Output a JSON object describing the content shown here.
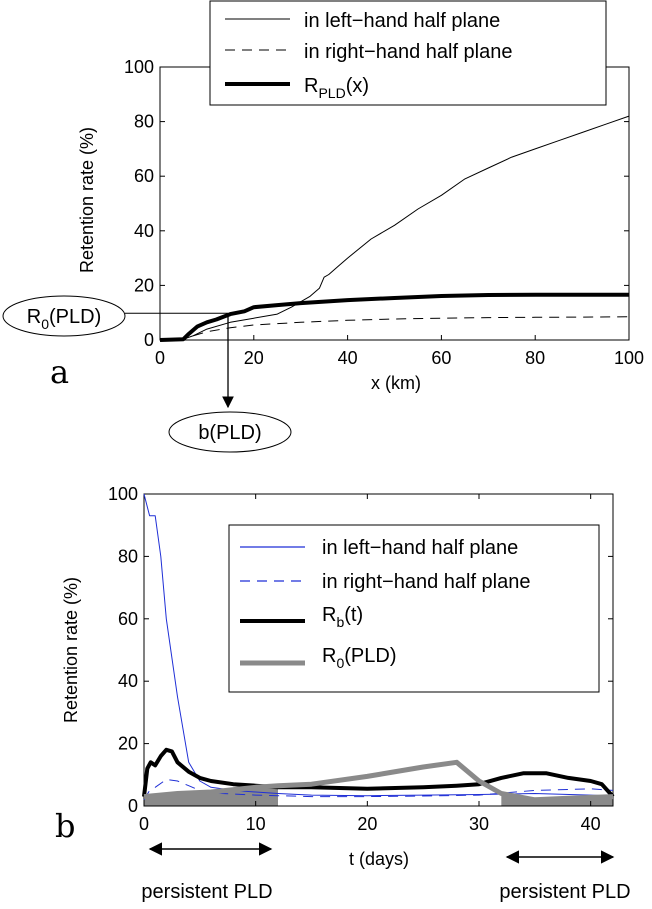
{
  "chart_data": [
    {
      "panel": "a",
      "type": "line",
      "xlabel": "x (km)",
      "ylabel": "Retention rate (%)",
      "xlim": [
        0,
        100
      ],
      "ylim": [
        0,
        100
      ],
      "xticks": [
        "0",
        "20",
        "40",
        "60",
        "80",
        "100"
      ],
      "yticks": [
        "0",
        "20",
        "40",
        "60",
        "80",
        "100"
      ],
      "grid": false,
      "legend_position": "top-right",
      "series": [
        {
          "name": "in left−hand half plane",
          "style": "thin-solid",
          "color": "#000000",
          "x": [
            0,
            5,
            7,
            10,
            15,
            20,
            25,
            28,
            32,
            34,
            35,
            36,
            38,
            40,
            45,
            50,
            55,
            60,
            65,
            70,
            75,
            80,
            85,
            90,
            95,
            100
          ],
          "y": [
            0,
            0.3,
            1.5,
            4,
            6.5,
            8,
            9.5,
            12,
            16,
            19,
            23,
            24,
            27,
            30,
            37,
            42,
            48,
            53,
            59,
            63,
            67,
            70,
            73,
            76,
            79,
            82
          ]
        },
        {
          "name": "in right−hand half plane",
          "style": "dashed",
          "color": "#000000",
          "x": [
            0,
            5,
            7,
            10,
            15,
            20,
            30,
            40,
            50,
            60,
            70,
            80,
            90,
            100
          ],
          "y": [
            0,
            0.3,
            1.5,
            3,
            4.5,
            5.5,
            6.5,
            7.2,
            7.7,
            8,
            8.2,
            8.3,
            8.4,
            8.5
          ]
        },
        {
          "name_parts": [
            "R",
            "PLD",
            "(x)"
          ],
          "style": "thick-solid",
          "color": "#000000",
          "x": [
            0,
            5,
            6,
            8,
            10,
            12,
            15,
            18,
            20,
            25,
            30,
            40,
            50,
            60,
            70,
            80,
            90,
            100
          ],
          "y": [
            0,
            0.3,
            2,
            5,
            6.5,
            7.5,
            9.5,
            10.5,
            12,
            12.8,
            13.5,
            14.6,
            15.4,
            16.1,
            16.5,
            16.6,
            16.6,
            16.6
          ]
        }
      ],
      "annotations": {
        "r0_label": [
          "R",
          "0",
          "(PLD)"
        ],
        "b_label": "b(PLD)",
        "r0_value": 9.8,
        "b_value": 14.5
      }
    },
    {
      "panel": "b",
      "type": "line",
      "xlabel": "t (days)",
      "ylabel": "Retention rate (%)",
      "xlim": [
        0,
        42
      ],
      "ylim": [
        0,
        100
      ],
      "xticks": [
        "0",
        "10",
        "20",
        "30",
        "40"
      ],
      "yticks": [
        "0",
        "20",
        "40",
        "60",
        "80",
        "100"
      ],
      "grid": false,
      "legend_position": "right",
      "series": [
        {
          "name": "in left−hand half plane",
          "style": "thin-solid",
          "color": "#1f2fd6",
          "x": [
            0,
            0.5,
            1,
            1.5,
            2,
            3,
            4,
            5,
            6,
            8,
            10,
            12,
            15,
            20,
            25,
            30,
            35,
            40,
            42
          ],
          "y": [
            100,
            93,
            93,
            80,
            60,
            35,
            14,
            8,
            6,
            5,
            4.5,
            4,
            3.5,
            3.3,
            3.5,
            3.7,
            4,
            3.5,
            3.2
          ]
        },
        {
          "name": "in right−hand half plane",
          "style": "dashed",
          "color": "#1f2fd6",
          "x": [
            0,
            0.5,
            1,
            2,
            3,
            4,
            5,
            7,
            10,
            15,
            20,
            25,
            30,
            35,
            40,
            42
          ],
          "y": [
            2,
            5,
            6,
            8.5,
            8,
            6.5,
            5,
            4,
            3.5,
            3,
            3,
            3.2,
            3.5,
            5,
            5.5,
            5
          ]
        },
        {
          "name_parts": [
            "R",
            "b",
            "(t)"
          ],
          "style": "thick-solid",
          "color": "#000000",
          "x": [
            0,
            0.3,
            0.6,
            1,
            1.5,
            2,
            2.5,
            3,
            4,
            5,
            6,
            8,
            10,
            12,
            15,
            20,
            25,
            28,
            30,
            32,
            34,
            36,
            38,
            40,
            41,
            42
          ],
          "y": [
            3,
            12,
            14,
            13,
            16,
            18,
            17.5,
            14,
            11,
            9,
            8,
            7,
            6.5,
            6,
            6,
            5.5,
            6,
            6.5,
            7,
            9,
            10.5,
            10.5,
            9,
            8,
            7,
            3
          ]
        },
        {
          "name_parts": [
            "R",
            "0",
            "(PLD)"
          ],
          "style": "thick-gray",
          "color": "#8a8a8a",
          "x": [
            0,
            3,
            6,
            10,
            12,
            15,
            20,
            25,
            28,
            30,
            32,
            35,
            38,
            42
          ],
          "y": [
            3,
            4,
            4.5,
            6,
            6.5,
            7,
            9.5,
            12.5,
            14,
            8,
            4,
            2,
            2.5,
            3
          ]
        }
      ],
      "persistent_regions": [
        [
          0,
          12
        ],
        [
          32,
          42
        ]
      ],
      "annotations": {
        "persistent_label": "persistent PLD"
      }
    }
  ]
}
